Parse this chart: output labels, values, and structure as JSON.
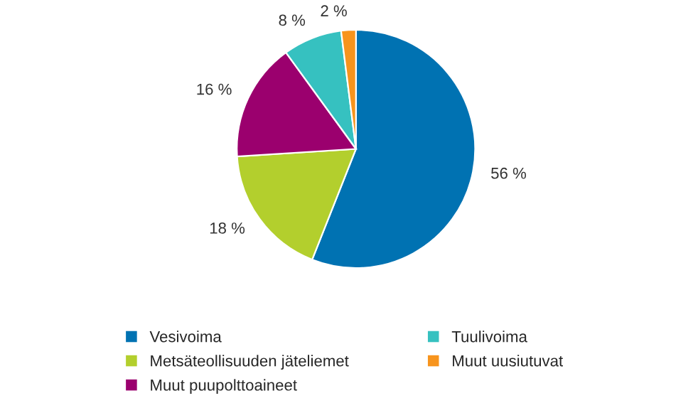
{
  "chart_data": {
    "type": "pie",
    "categories": [
      "Vesivoima",
      "Metsäteollisuuden jäteliemet",
      "Muut puupolttoaineet",
      "Tuulivoima",
      "Muut uusiutuvat"
    ],
    "values": [
      56,
      18,
      16,
      8,
      2
    ],
    "colors": [
      "#0072b2",
      "#b3cf2d",
      "#9b006e",
      "#36c1c0",
      "#f7941d"
    ],
    "value_labels": [
      "56 %",
      "18 %",
      "16 %",
      "8 %",
      "2 %"
    ],
    "legend": "bottom"
  }
}
